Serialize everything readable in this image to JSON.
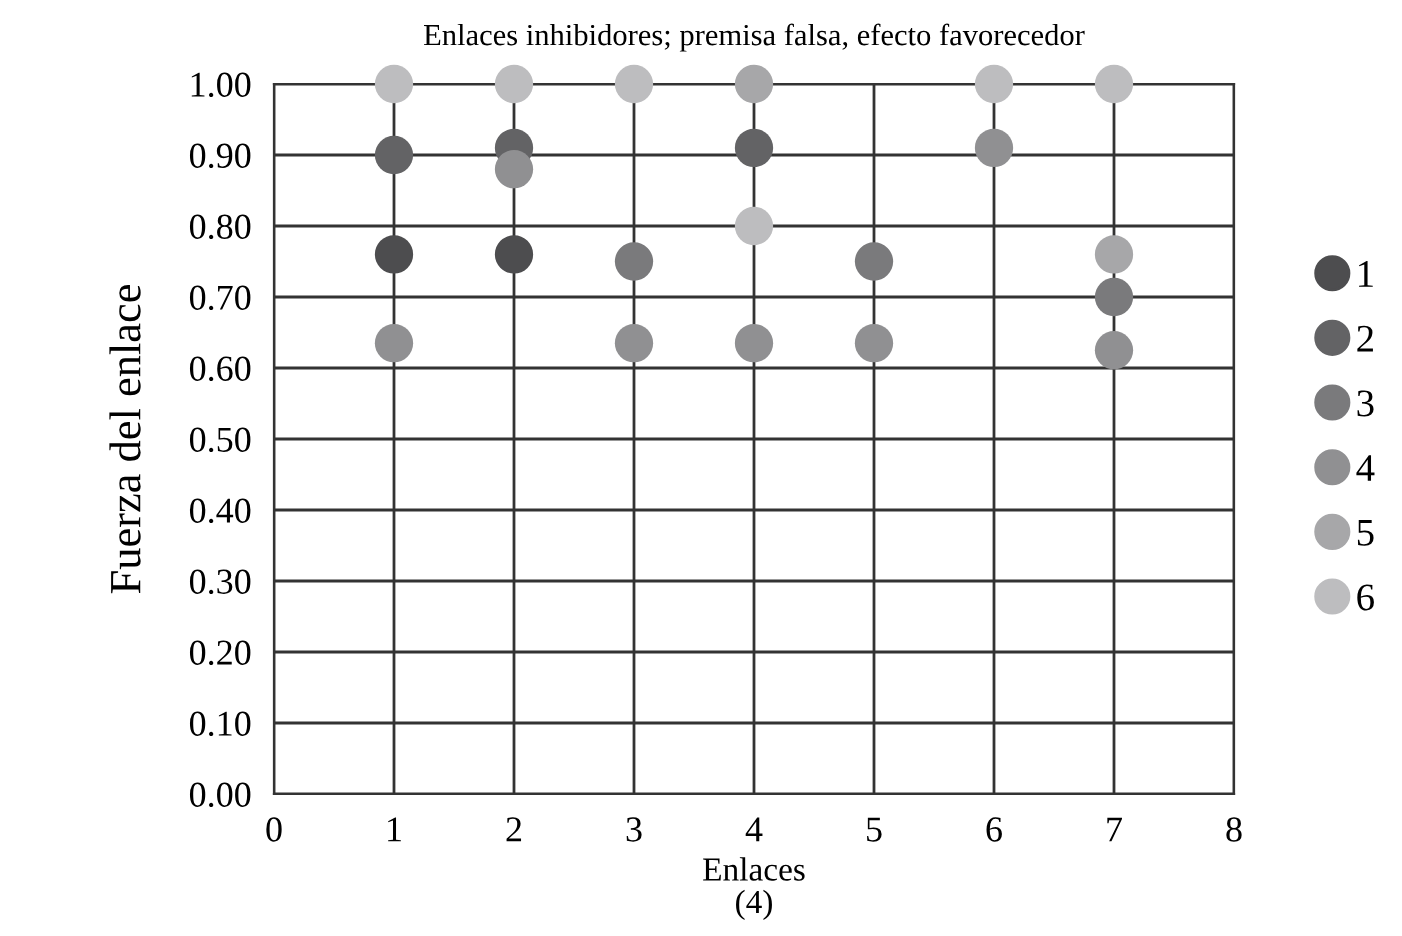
{
  "chart_data": {
    "type": "scatter",
    "title": "Enlaces inhibidores; premisa falsa, efecto favorecedor",
    "xlabel": "Enlaces",
    "ylabel": "Fuerza del enlace",
    "annotations": [
      "(4)"
    ],
    "xlim": [
      0,
      8
    ],
    "xticks": [
      0,
      1,
      2,
      3,
      4,
      5,
      6,
      7,
      8
    ],
    "ylim": [
      0,
      1
    ],
    "yticks": [
      {
        "value": 0,
        "label": "0.00"
      },
      {
        "value": 0.1,
        "label": "0.10"
      },
      {
        "value": 0.2,
        "label": "0.20"
      },
      {
        "value": 0.3,
        "label": "0.30"
      },
      {
        "value": 0.4,
        "label": "0.40"
      },
      {
        "value": 0.5,
        "label": "0.50"
      },
      {
        "value": 0.6,
        "label": "0.60"
      },
      {
        "value": 0.7,
        "label": "0.70"
      },
      {
        "value": 0.8,
        "label": "0.80"
      },
      {
        "value": 0.9,
        "label": "0.90"
      },
      {
        "value": 1,
        "label": "1.00"
      }
    ],
    "grid": true,
    "legend": "right",
    "marker": "circle",
    "series": [
      {
        "name": "1",
        "color": "#4d4d4f",
        "x": [
          1,
          2
        ],
        "values": [
          0.76,
          0.76
        ]
      },
      {
        "name": "2",
        "color": "#636365",
        "x": [
          1,
          2,
          4
        ],
        "values": [
          0.9,
          0.91,
          0.91
        ]
      },
      {
        "name": "3",
        "color": "#7a7a7c",
        "x": [
          3,
          5,
          7
        ],
        "values": [
          0.75,
          0.75,
          0.7
        ]
      },
      {
        "name": "4",
        "color": "#909092",
        "x": [
          1,
          2,
          3,
          4,
          5,
          6,
          7
        ],
        "values": [
          0.635,
          0.88,
          0.635,
          0.635,
          0.635,
          0.91,
          0.625
        ]
      },
      {
        "name": "5",
        "color": "#a7a7a9",
        "x": [
          4,
          7
        ],
        "values": [
          1.0,
          0.76
        ]
      },
      {
        "name": "6",
        "color": "#bdbdbf",
        "x": [
          1,
          2,
          3,
          6,
          7,
          4
        ],
        "values": [
          1.0,
          1.0,
          1.0,
          1.0,
          1.0,
          0.8
        ]
      }
    ]
  }
}
